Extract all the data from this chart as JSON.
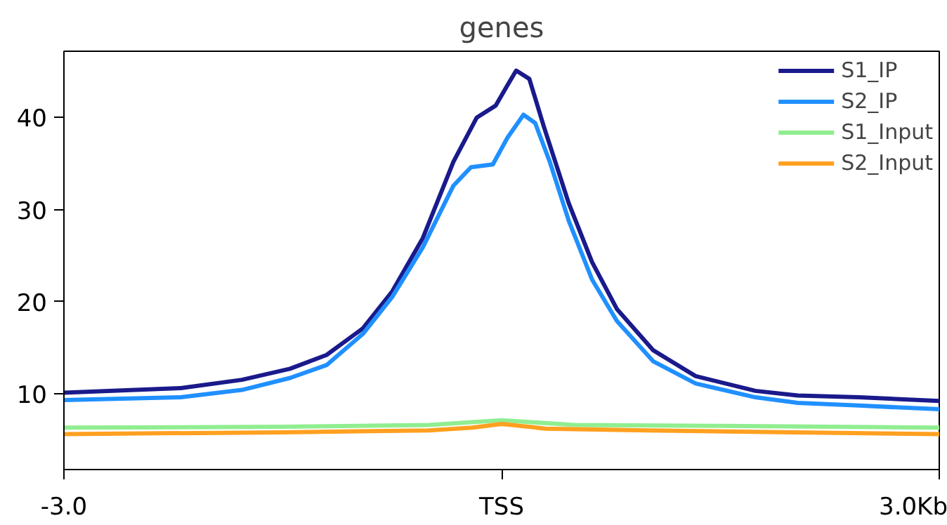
{
  "chart_data": {
    "type": "line",
    "title": "genes",
    "xlim": [
      -3.0,
      3.0
    ],
    "xticks": [
      {
        "value": -3.0,
        "label": "-3.0"
      },
      {
        "value": 0,
        "label": "TSS"
      },
      {
        "value": 3.0,
        "label": "3.0Kb"
      }
    ],
    "ylim": [
      1.75,
      47.2
    ],
    "yticks": [
      10,
      20,
      30,
      40
    ],
    "grid": false,
    "legend": "top right",
    "line_style": "solid",
    "series": [
      {
        "name": "S1_IP",
        "color": "#1a1a8c",
        "x": [
          -3.0,
          -2.2,
          -1.78,
          -1.45,
          -1.2,
          -0.95,
          -0.75,
          -0.54,
          -0.33,
          -0.17,
          -0.04,
          0.04,
          0.1,
          0.19,
          0.29,
          0.46,
          0.62,
          0.79,
          1.04,
          1.33,
          1.74,
          2.03,
          2.45,
          3.0
        ],
        "values": [
          10.1,
          10.6,
          11.5,
          12.7,
          14.2,
          17.1,
          21.1,
          26.9,
          35.2,
          40.0,
          41.3,
          43.5,
          45.1,
          44.2,
          39.0,
          30.7,
          24.3,
          19.2,
          14.7,
          11.9,
          10.3,
          9.8,
          9.6,
          9.2
        ]
      },
      {
        "name": "S2_IP",
        "color": "#2090ff",
        "x": [
          -3.0,
          -2.2,
          -1.78,
          -1.45,
          -1.2,
          -0.95,
          -0.75,
          -0.54,
          -0.33,
          -0.21,
          -0.06,
          0.04,
          0.15,
          0.23,
          0.33,
          0.46,
          0.62,
          0.79,
          1.04,
          1.33,
          1.74,
          2.03,
          2.45,
          3.0
        ],
        "values": [
          9.3,
          9.6,
          10.4,
          11.7,
          13.1,
          16.5,
          20.5,
          25.9,
          32.6,
          34.6,
          34.9,
          37.8,
          40.3,
          39.4,
          35.2,
          28.8,
          22.4,
          17.9,
          13.5,
          11.1,
          9.6,
          9.0,
          8.7,
          8.3
        ]
      },
      {
        "name": "S1_Input",
        "color": "#90ee90",
        "x": [
          -3.0,
          -1.5,
          -0.5,
          0.0,
          0.5,
          1.5,
          3.0
        ],
        "values": [
          6.3,
          6.4,
          6.6,
          7.1,
          6.6,
          6.5,
          6.3
        ]
      },
      {
        "name": "S2_Input",
        "color": "#ffa020",
        "x": [
          -3.0,
          -1.5,
          -0.5,
          -0.2,
          0.0,
          0.3,
          1.0,
          2.0,
          3.0
        ],
        "values": [
          5.6,
          5.8,
          6.0,
          6.3,
          6.7,
          6.2,
          6.0,
          5.8,
          5.6
        ]
      }
    ]
  }
}
